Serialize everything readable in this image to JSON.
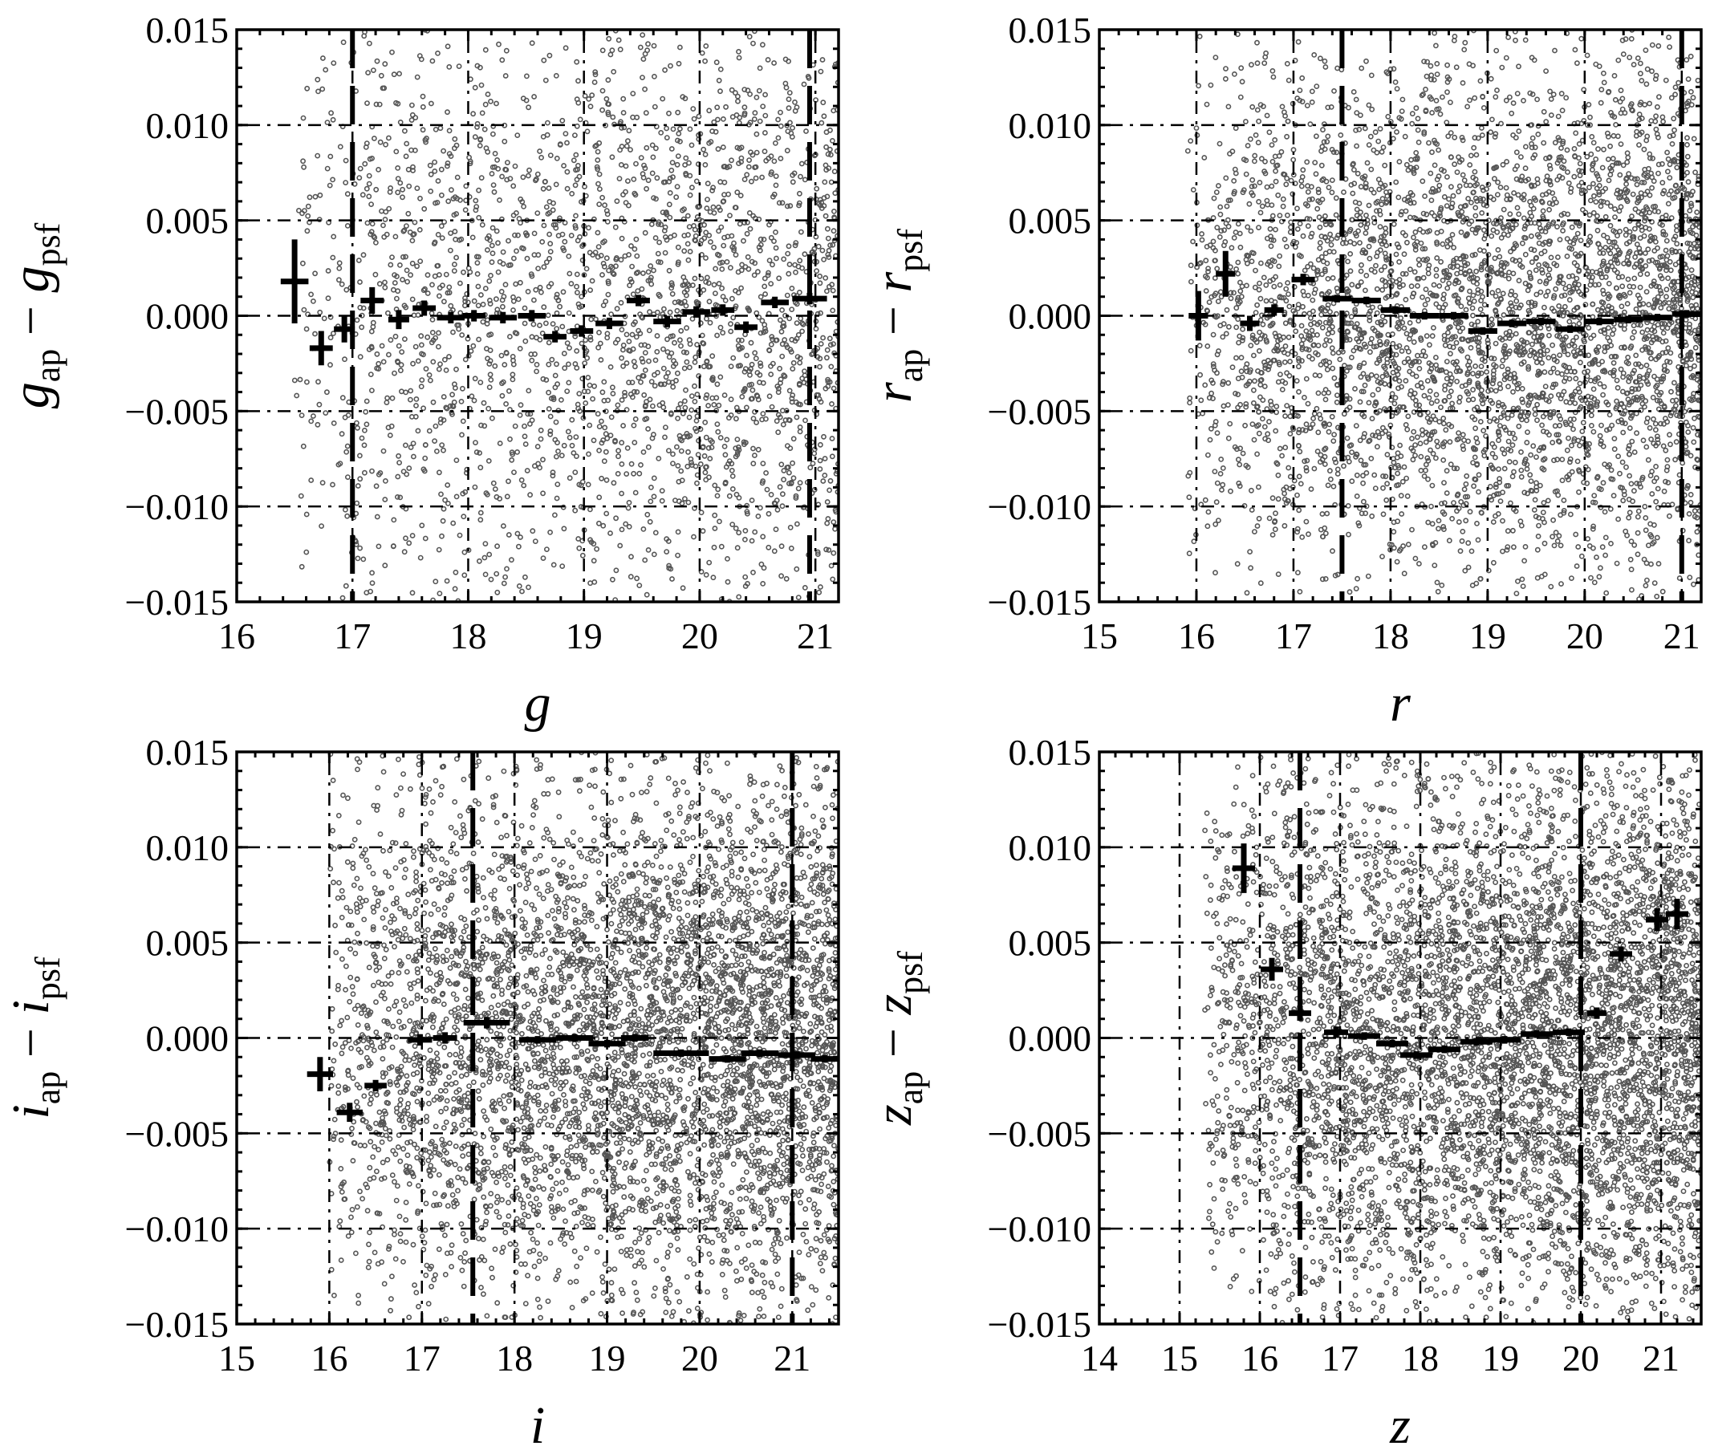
{
  "chart_data": [
    {
      "type": "scatter",
      "xlabel": "g",
      "ylabel_main": "g",
      "ylabel_sub1": "ap",
      "ylabel_sub2": "psf",
      "xlim": [
        16,
        21.2
      ],
      "ylim": [
        -0.015,
        0.015
      ],
      "xticks": [
        "16",
        "17",
        "18",
        "19",
        "20",
        "21"
      ],
      "yticks": [
        "0.015",
        "0.010",
        "0.005",
        "0.000",
        "−0.005",
        "−0.010",
        "−0.015"
      ],
      "grid_x": [
        17,
        18,
        19,
        20,
        21
      ],
      "grid_y": [
        0.01,
        0.005,
        0,
        -0.005,
        -0.01
      ],
      "dashed_x": [
        17.0,
        20.95
      ],
      "scatter_range": [
        16.5,
        21.2
      ],
      "scatter_count": 2600,
      "scatter_spread": 0.0085,
      "binned": [
        {
          "x": 16.5,
          "y": 0.0018,
          "xerr": 0.12,
          "yerr": 0.0022
        },
        {
          "x": 16.73,
          "y": -0.0017,
          "xerr": 0.1,
          "yerr": 0.0009
        },
        {
          "x": 16.93,
          "y": -0.0007,
          "xerr": 0.09,
          "yerr": 0.0007
        },
        {
          "x": 17.17,
          "y": 0.0008,
          "xerr": 0.1,
          "yerr": 0.0007
        },
        {
          "x": 17.4,
          "y": -0.0002,
          "xerr": 0.09,
          "yerr": 0.0005
        },
        {
          "x": 17.62,
          "y": 0.0004,
          "xerr": 0.1,
          "yerr": 0.0004
        },
        {
          "x": 17.85,
          "y": -0.0001,
          "xerr": 0.12,
          "yerr": 0.0003
        },
        {
          "x": 18.05,
          "y": 0.0,
          "xerr": 0.1,
          "yerr": 0.0003
        },
        {
          "x": 18.3,
          "y": -0.0001,
          "xerr": 0.12,
          "yerr": 0.0003
        },
        {
          "x": 18.55,
          "y": 0.0,
          "xerr": 0.12,
          "yerr": 0.0003
        },
        {
          "x": 18.75,
          "y": -0.0011,
          "xerr": 0.1,
          "yerr": 0.0003
        },
        {
          "x": 18.98,
          "y": -0.0008,
          "xerr": 0.1,
          "yerr": 0.0003
        },
        {
          "x": 19.22,
          "y": -0.0004,
          "xerr": 0.12,
          "yerr": 0.0003
        },
        {
          "x": 19.47,
          "y": 0.0008,
          "xerr": 0.1,
          "yerr": 0.0003
        },
        {
          "x": 19.72,
          "y": -0.0003,
          "xerr": 0.12,
          "yerr": 0.0003
        },
        {
          "x": 19.97,
          "y": 0.0002,
          "xerr": 0.12,
          "yerr": 0.0003
        },
        {
          "x": 20.2,
          "y": 0.0003,
          "xerr": 0.1,
          "yerr": 0.0003
        },
        {
          "x": 20.4,
          "y": -0.0006,
          "xerr": 0.1,
          "yerr": 0.0003
        },
        {
          "x": 20.65,
          "y": 0.0007,
          "xerr": 0.12,
          "yerr": 0.0003
        },
        {
          "x": 20.95,
          "y": 0.0009,
          "xerr": 0.15,
          "yerr": 0.0003
        }
      ]
    },
    {
      "type": "scatter",
      "xlabel": "r",
      "ylabel_main": "r",
      "ylabel_sub1": "ap",
      "ylabel_sub2": "psf",
      "xlim": [
        15,
        21.2
      ],
      "ylim": [
        -0.015,
        0.015
      ],
      "xticks": [
        "15",
        "16",
        "17",
        "18",
        "19",
        "20",
        "21"
      ],
      "yticks": [
        "0.015",
        "0.010",
        "0.005",
        "0.000",
        "−0.005",
        "−0.010",
        "−0.015"
      ],
      "grid_x": [
        16,
        17,
        18,
        19,
        20,
        21
      ],
      "grid_y": [
        0.01,
        0.005,
        0,
        -0.005,
        -0.01
      ],
      "dashed_x": [
        17.5,
        21.0
      ],
      "scatter_range": [
        15.9,
        21.2
      ],
      "scatter_count": 4200,
      "scatter_spread": 0.007,
      "binned": [
        {
          "x": 16.02,
          "y": 0.0,
          "xerr": 0.1,
          "yerr": 0.0013
        },
        {
          "x": 16.3,
          "y": 0.0022,
          "xerr": 0.1,
          "yerr": 0.0012
        },
        {
          "x": 16.55,
          "y": -0.0004,
          "xerr": 0.1,
          "yerr": 0.0004
        },
        {
          "x": 16.8,
          "y": 0.0003,
          "xerr": 0.1,
          "yerr": 0.0003
        },
        {
          "x": 17.1,
          "y": 0.0019,
          "xerr": 0.12,
          "yerr": 0.0003
        },
        {
          "x": 17.45,
          "y": 0.0009,
          "xerr": 0.15,
          "yerr": 0.0002
        },
        {
          "x": 17.75,
          "y": 0.0008,
          "xerr": 0.15,
          "yerr": 0.0002
        },
        {
          "x": 18.05,
          "y": 0.0003,
          "xerr": 0.15,
          "yerr": 0.0002
        },
        {
          "x": 18.35,
          "y": 0.0,
          "xerr": 0.15,
          "yerr": 0.0002
        },
        {
          "x": 18.65,
          "y": 0.0,
          "xerr": 0.15,
          "yerr": 0.0002
        },
        {
          "x": 18.95,
          "y": -0.0008,
          "xerr": 0.15,
          "yerr": 0.0002
        },
        {
          "x": 19.25,
          "y": -0.0004,
          "xerr": 0.15,
          "yerr": 0.0002
        },
        {
          "x": 19.55,
          "y": -0.0003,
          "xerr": 0.15,
          "yerr": 0.0002
        },
        {
          "x": 19.85,
          "y": -0.0007,
          "xerr": 0.15,
          "yerr": 0.0002
        },
        {
          "x": 20.15,
          "y": -0.0003,
          "xerr": 0.15,
          "yerr": 0.0002
        },
        {
          "x": 20.45,
          "y": -0.0002,
          "xerr": 0.15,
          "yerr": 0.0002
        },
        {
          "x": 20.75,
          "y": -0.0001,
          "xerr": 0.15,
          "yerr": 0.0002
        },
        {
          "x": 21.05,
          "y": 0.0001,
          "xerr": 0.15,
          "yerr": 0.0002
        }
      ]
    },
    {
      "type": "scatter",
      "xlabel": "i",
      "ylabel_main": "i",
      "ylabel_sub1": "ap",
      "ylabel_sub2": "psf",
      "xlim": [
        15,
        21.5
      ],
      "ylim": [
        -0.015,
        0.015
      ],
      "xticks": [
        "15",
        "16",
        "17",
        "18",
        "19",
        "20",
        "21"
      ],
      "yticks": [
        "0.015",
        "0.010",
        "0.005",
        "0.000",
        "−0.005",
        "−0.010",
        "−0.015"
      ],
      "grid_x": [
        16,
        17,
        18,
        19,
        20,
        21
      ],
      "grid_y": [
        0.01,
        0.005,
        0,
        -0.005,
        -0.01
      ],
      "dashed_x": [
        17.55,
        21.0
      ],
      "scatter_range": [
        16.0,
        21.5
      ],
      "scatter_count": 5200,
      "scatter_spread": 0.0075,
      "binned": [
        {
          "x": 15.9,
          "y": -0.0019,
          "xerr": 0.14,
          "yerr": 0.0009
        },
        {
          "x": 16.22,
          "y": -0.0039,
          "xerr": 0.14,
          "yerr": 0.0005
        },
        {
          "x": 16.5,
          "y": -0.0025,
          "xerr": 0.12,
          "yerr": 0.0003
        },
        {
          "x": 16.98,
          "y": -0.0001,
          "xerr": 0.13,
          "yerr": 0.0003
        },
        {
          "x": 17.25,
          "y": 0.0,
          "xerr": 0.13,
          "yerr": 0.0003
        },
        {
          "x": 17.7,
          "y": 0.0008,
          "xerr": 0.25,
          "yerr": 0.0003
        },
        {
          "x": 18.25,
          "y": -0.0001,
          "xerr": 0.2,
          "yerr": 0.0002
        },
        {
          "x": 18.65,
          "y": 0.0,
          "xerr": 0.2,
          "yerr": 0.0002
        },
        {
          "x": 19.0,
          "y": -0.0003,
          "xerr": 0.2,
          "yerr": 0.0002
        },
        {
          "x": 19.3,
          "y": 0.0,
          "xerr": 0.15,
          "yerr": 0.0002
        },
        {
          "x": 19.8,
          "y": -0.0008,
          "xerr": 0.3,
          "yerr": 0.0002
        },
        {
          "x": 20.3,
          "y": -0.0011,
          "xerr": 0.2,
          "yerr": 0.0002
        },
        {
          "x": 20.65,
          "y": -0.0008,
          "xerr": 0.2,
          "yerr": 0.0002
        },
        {
          "x": 21.05,
          "y": -0.0009,
          "xerr": 0.2,
          "yerr": 0.0002
        },
        {
          "x": 21.35,
          "y": -0.0011,
          "xerr": 0.15,
          "yerr": 0.0002
        }
      ]
    },
    {
      "type": "scatter",
      "xlabel": "z",
      "ylabel_main": "z",
      "ylabel_sub1": "ap",
      "ylabel_sub2": "psf",
      "xlim": [
        14,
        21.5
      ],
      "ylim": [
        -0.015,
        0.015
      ],
      "xticks": [
        "14",
        "15",
        "16",
        "17",
        "18",
        "19",
        "20",
        "21"
      ],
      "yticks": [
        "0.015",
        "0.010",
        "0.005",
        "0.000",
        "−0.005",
        "−0.010",
        "−0.015"
      ],
      "grid_x": [
        15,
        16,
        17,
        18,
        19,
        20,
        21
      ],
      "grid_y": [
        0.01,
        0.005,
        0,
        -0.005,
        -0.01
      ],
      "dashed_x": [
        16.5,
        20.0
      ],
      "scatter_range": [
        15.3,
        21.5
      ],
      "scatter_count": 5600,
      "scatter_spread": 0.0075,
      "binned": [
        {
          "x": 15.8,
          "y": 0.0089,
          "xerr": 0.14,
          "yerr": 0.0013
        },
        {
          "x": 16.15,
          "y": 0.0036,
          "xerr": 0.14,
          "yerr": 0.0006
        },
        {
          "x": 16.5,
          "y": 0.0013,
          "xerr": 0.14,
          "yerr": 0.0004
        },
        {
          "x": 16.95,
          "y": 0.0003,
          "xerr": 0.15,
          "yerr": 0.0003
        },
        {
          "x": 17.3,
          "y": 0.0001,
          "xerr": 0.2,
          "yerr": 0.0002
        },
        {
          "x": 17.65,
          "y": -0.0003,
          "xerr": 0.2,
          "yerr": 0.0002
        },
        {
          "x": 17.95,
          "y": -0.0009,
          "xerr": 0.2,
          "yerr": 0.0002
        },
        {
          "x": 18.3,
          "y": -0.0006,
          "xerr": 0.2,
          "yerr": 0.0002
        },
        {
          "x": 18.7,
          "y": -0.0002,
          "xerr": 0.2,
          "yerr": 0.0002
        },
        {
          "x": 19.05,
          "y": -0.0001,
          "xerr": 0.2,
          "yerr": 0.0002
        },
        {
          "x": 19.45,
          "y": 0.0002,
          "xerr": 0.2,
          "yerr": 0.0002
        },
        {
          "x": 19.85,
          "y": 0.0003,
          "xerr": 0.2,
          "yerr": 0.0002
        },
        {
          "x": 20.2,
          "y": 0.0013,
          "xerr": 0.12,
          "yerr": 0.0003
        },
        {
          "x": 20.5,
          "y": 0.0044,
          "xerr": 0.14,
          "yerr": 0.0004
        },
        {
          "x": 20.95,
          "y": 0.0062,
          "xerr": 0.14,
          "yerr": 0.0006
        },
        {
          "x": 21.2,
          "y": 0.0065,
          "xerr": 0.14,
          "yerr": 0.0008
        }
      ]
    }
  ]
}
